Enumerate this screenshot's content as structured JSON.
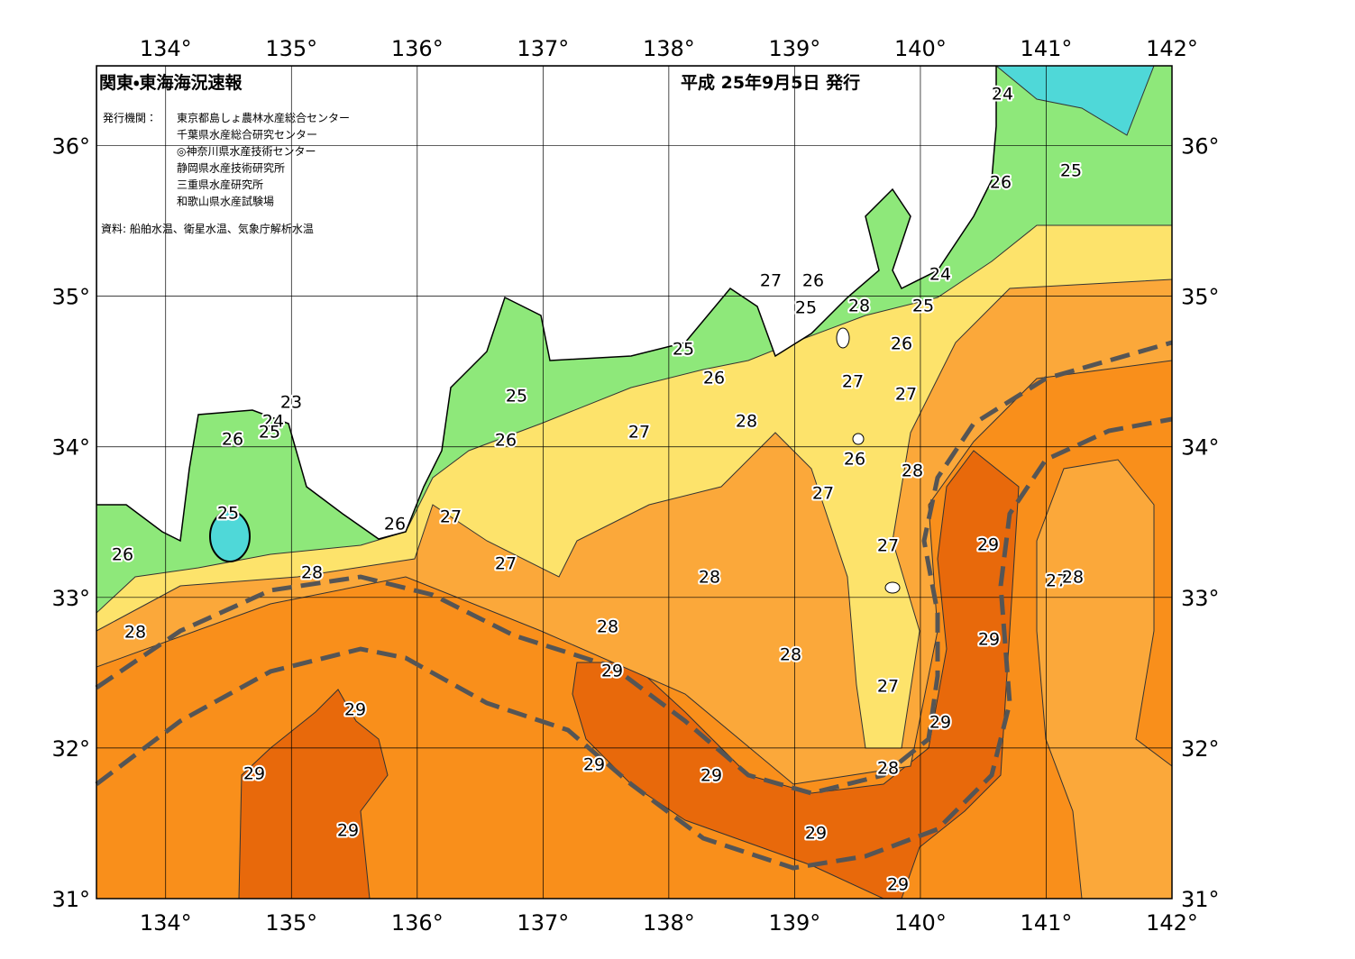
{
  "map": {
    "title": "関東・東海海況速報",
    "date": "平成 25年9月5日 発行",
    "agencies_label": "発行機関：",
    "agencies": [
      "東京都島しょ農林水産総合センター",
      "千葉県水産総合研究センター",
      "◎神奈川県水産技術センター",
      "静岡県水産技術研究所",
      "三重県水産研究所",
      "和歌山県水産試験場"
    ],
    "source": "資料: 船舶水温、衛星水温、気象庁解析水温",
    "xlim": [
      133.45,
      142
    ],
    "ylim": [
      31,
      36.53
    ],
    "lon_ticks": [
      {
        "value": 134,
        "label": "134°"
      },
      {
        "value": 135,
        "label": "135°"
      },
      {
        "value": 136,
        "label": "136°"
      },
      {
        "value": 137,
        "label": "137°"
      },
      {
        "value": 138,
        "label": "138°"
      },
      {
        "value": 139,
        "label": "139°"
      },
      {
        "value": 140,
        "label": "140°"
      },
      {
        "value": 141,
        "label": "141°"
      },
      {
        "value": 142,
        "label": "142°"
      }
    ],
    "lat_ticks": [
      {
        "value": 31,
        "label": "31°"
      },
      {
        "value": 32,
        "label": "32°"
      },
      {
        "value": 33,
        "label": "33°"
      },
      {
        "value": 34,
        "label": "34°"
      },
      {
        "value": 35,
        "label": "35°"
      },
      {
        "value": 36,
        "label": "36°"
      }
    ],
    "contour_labels": [
      24,
      25,
      26,
      27,
      26,
      25,
      28,
      24,
      25,
      26,
      25,
      26,
      27,
      27,
      23,
      24,
      25,
      26,
      25,
      26,
      27,
      28,
      26,
      28,
      27,
      25,
      26,
      27,
      27,
      29,
      26,
      27,
      28,
      28,
      27,
      28,
      28,
      28,
      29,
      28,
      29,
      27,
      29,
      29,
      29,
      29,
      29,
      28,
      29,
      29,
      29
    ]
  }
}
